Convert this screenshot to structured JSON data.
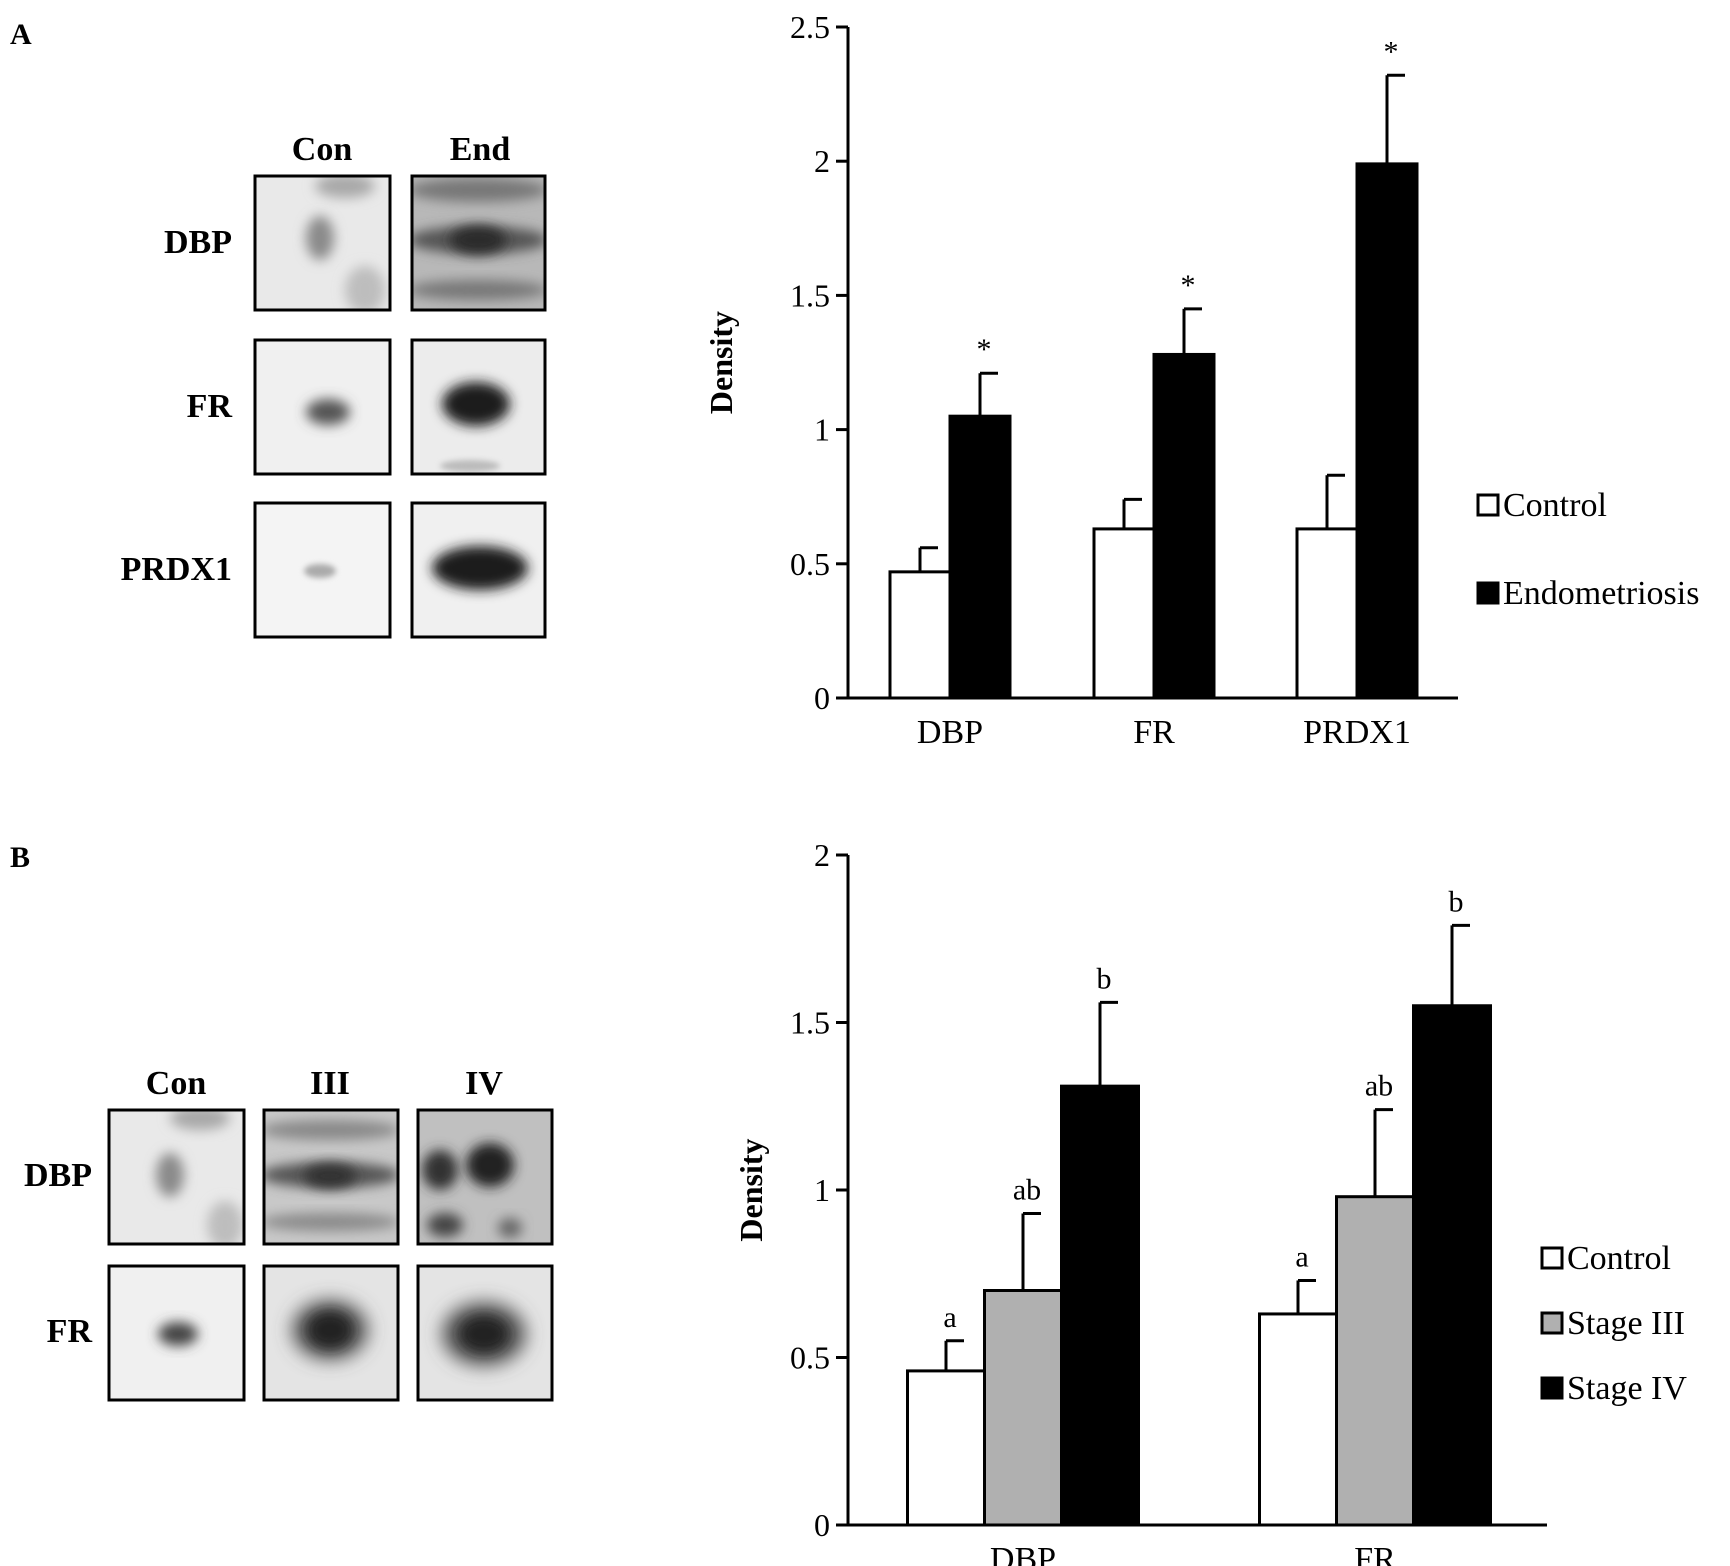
{
  "panels": {
    "a": {
      "letter": "A",
      "blots": {
        "columns": [
          "Con",
          "End"
        ],
        "rows": [
          "DBP",
          "FR",
          "PRDX1"
        ]
      }
    },
    "b": {
      "letter": "B",
      "blots": {
        "columns": [
          "Con",
          "III",
          "IV"
        ],
        "rows": [
          "DBP",
          "FR"
        ]
      }
    }
  },
  "chart_data": [
    {
      "type": "bar",
      "title": "",
      "xlabel": "",
      "ylabel": "Density",
      "ylim": [
        0,
        2.5
      ],
      "yticks": [
        "0",
        "0.5",
        "1",
        "1.5",
        "2",
        "2.5"
      ],
      "categories": [
        "DBP",
        "FR",
        "PRDX1"
      ],
      "series": [
        {
          "name": "Control",
          "color": "#ffffff",
          "values": [
            0.47,
            0.63,
            0.63
          ],
          "errors": [
            0.09,
            0.11,
            0.2
          ]
        },
        {
          "name": "Endometriosis",
          "color": "#000000",
          "values": [
            1.05,
            1.28,
            1.99
          ],
          "errors": [
            0.16,
            0.17,
            0.33
          ]
        }
      ],
      "annotations": [
        {
          "category": "DBP",
          "series": "Endometriosis",
          "text": "*"
        },
        {
          "category": "FR",
          "series": "Endometriosis",
          "text": "*"
        },
        {
          "category": "PRDX1",
          "series": "Endometriosis",
          "text": "*"
        }
      ],
      "legend_position": "right"
    },
    {
      "type": "bar",
      "title": "",
      "xlabel": "",
      "ylabel": "Density",
      "ylim": [
        0,
        2
      ],
      "yticks": [
        "0",
        "0.5",
        "1",
        "1.5",
        "2"
      ],
      "categories": [
        "DBP",
        "FR"
      ],
      "series": [
        {
          "name": "Control",
          "color": "#ffffff",
          "values": [
            0.46,
            0.63
          ],
          "errors": [
            0.09,
            0.1
          ]
        },
        {
          "name": "Stage III",
          "color": "#b0b0b0",
          "values": [
            0.7,
            0.98
          ],
          "errors": [
            0.23,
            0.26
          ]
        },
        {
          "name": "Stage IV",
          "color": "#000000",
          "values": [
            1.31,
            1.55
          ],
          "errors": [
            0.25,
            0.24
          ]
        }
      ],
      "annotations": [
        {
          "category": "DBP",
          "series": "Control",
          "text": "a"
        },
        {
          "category": "DBP",
          "series": "Stage III",
          "text": "ab"
        },
        {
          "category": "DBP",
          "series": "Stage IV",
          "text": "b"
        },
        {
          "category": "FR",
          "series": "Control",
          "text": "a"
        },
        {
          "category": "FR",
          "series": "Stage III",
          "text": "ab"
        },
        {
          "category": "FR",
          "series": "Stage IV",
          "text": "b"
        }
      ],
      "legend_position": "right"
    }
  ]
}
